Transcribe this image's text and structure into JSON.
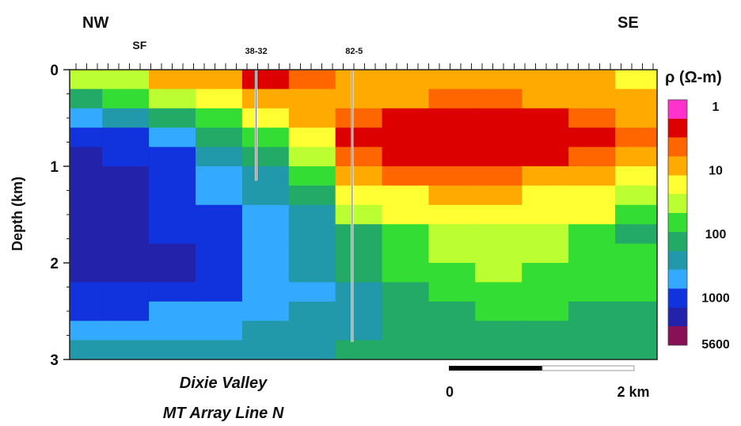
{
  "chart_data": {
    "type": "heatmap",
    "title_lines": [
      "Dixie Valley",
      "MT Array Line N"
    ],
    "ylabel": "Depth  (km)",
    "y_ticks": [
      "0",
      "1",
      "2",
      "3"
    ],
    "ylim": [
      0,
      3
    ],
    "direction_left": "NW",
    "direction_right": "SE",
    "top_labels": [
      {
        "label": "SF",
        "x_km": -3.35
      },
      {
        "label": "38-32",
        "x_km": -2.1
      },
      {
        "label": "82-5",
        "x_km": -1.05
      }
    ],
    "wells": [
      {
        "name": "38-32",
        "x_km": -2.1,
        "depth_km": 1.15
      },
      {
        "name": "82-5",
        "x_km": -1.07,
        "depth_km": 2.82
      }
    ],
    "x_extent_km": [
      -4.1,
      2.2
    ],
    "scale_bar": {
      "start_label": "0",
      "end_label": "2 km",
      "length_km": 2
    },
    "colorbar": {
      "label": "ρ (Ω-m)",
      "tick_labels": [
        "1",
        "10",
        "100",
        "1000",
        "5600"
      ],
      "colors": [
        "#ff33cc",
        "#dd0000",
        "#ff6600",
        "#ffaa00",
        "#ffff33",
        "#bbff33",
        "#33dd33",
        "#22aa66",
        "#2299aa",
        "#33aaff",
        "#1133dd",
        "#2222aa",
        "#881155"
      ]
    },
    "resistivity_grid": {
      "x_km": [
        -4.0,
        -3.5,
        -3.0,
        -2.5,
        -2.0,
        -1.5,
        -1.0,
        -0.5,
        0.0,
        0.5,
        1.0,
        1.5,
        2.0
      ],
      "depth_km": [
        0.1,
        0.3,
        0.5,
        0.7,
        0.9,
        1.1,
        1.3,
        1.5,
        1.7,
        1.9,
        2.1,
        2.3,
        2.5,
        2.7,
        2.9
      ],
      "log10_ohm_m": [
        [
          1.5,
          1.4,
          1.0,
          0.9,
          0.3,
          0.6,
          1.0,
          0.9,
          0.9,
          0.9,
          0.9,
          0.9,
          1.1
        ],
        [
          2.2,
          1.8,
          1.6,
          1.3,
          0.9,
          0.8,
          0.8,
          0.8,
          0.7,
          0.7,
          0.8,
          0.8,
          1.0
        ],
        [
          2.6,
          2.5,
          2.2,
          1.7,
          1.3,
          0.9,
          0.5,
          0.4,
          0.4,
          0.4,
          0.4,
          0.5,
          0.9
        ],
        [
          3.1,
          3.0,
          2.6,
          2.2,
          1.8,
          1.3,
          0.3,
          0.2,
          0.2,
          0.2,
          0.2,
          0.3,
          0.6
        ],
        [
          3.2,
          3.1,
          2.9,
          2.5,
          2.1,
          1.5,
          0.7,
          0.3,
          0.2,
          0.3,
          0.4,
          0.6,
          0.9
        ],
        [
          3.2,
          3.2,
          3.0,
          2.7,
          2.3,
          1.8,
          1.0,
          0.7,
          0.6,
          0.7,
          0.8,
          1.0,
          1.3
        ],
        [
          3.2,
          3.2,
          3.1,
          2.8,
          2.5,
          2.1,
          1.3,
          1.1,
          1.0,
          1.0,
          1.1,
          1.2,
          1.5
        ],
        [
          3.2,
          3.2,
          3.1,
          2.9,
          2.6,
          2.3,
          1.6,
          1.2,
          1.2,
          1.2,
          1.3,
          1.3,
          1.7
        ],
        [
          3.2,
          3.2,
          3.1,
          2.9,
          2.6,
          2.4,
          2.0,
          1.7,
          1.4,
          1.5,
          1.6,
          1.8,
          2.0
        ],
        [
          3.2,
          3.2,
          3.2,
          3.0,
          2.7,
          2.5,
          2.1,
          1.8,
          1.5,
          1.4,
          1.6,
          1.8,
          1.9
        ],
        [
          3.2,
          3.2,
          3.2,
          3.0,
          2.8,
          2.5,
          2.2,
          1.9,
          1.7,
          1.5,
          1.7,
          1.9,
          1.9
        ],
        [
          2.9,
          2.9,
          2.9,
          2.9,
          2.8,
          2.6,
          2.3,
          2.0,
          1.9,
          1.8,
          1.8,
          1.9,
          1.9
        ],
        [
          2.9,
          2.9,
          2.8,
          2.7,
          2.6,
          2.5,
          2.3,
          2.1,
          2.0,
          1.9,
          1.9,
          2.0,
          2.0
        ],
        [
          2.8,
          2.8,
          2.7,
          2.6,
          2.5,
          2.4,
          2.3,
          2.2,
          2.1,
          2.0,
          2.0,
          2.1,
          2.1
        ],
        [
          2.5,
          2.5,
          2.5,
          2.5,
          2.4,
          2.3,
          2.2,
          2.2,
          2.2,
          2.2,
          2.2,
          2.2,
          2.2
        ]
      ]
    }
  }
}
